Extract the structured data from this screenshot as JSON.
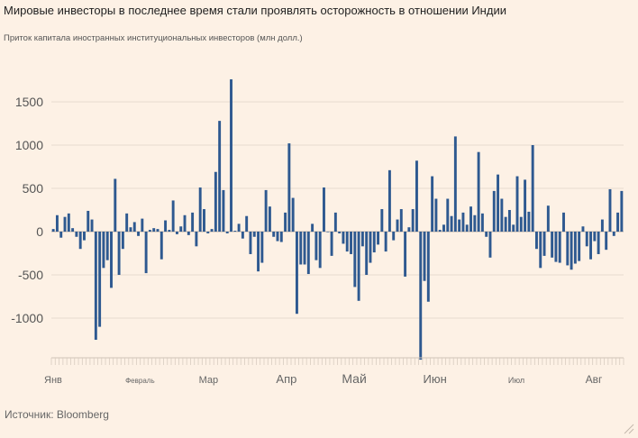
{
  "title": "Мировые инвесторы в последнее время стали проявлять осторожность в отношении Индии",
  "subtitle": "Приток капитала иностранных институциональных инвесторов (млн долл.)",
  "source": "Источник: Bloomberg",
  "colors": {
    "background": "#fdf1e5",
    "bar": "#2e5990",
    "grid": "#e8dccf",
    "zero_line": "#bfb3a7"
  },
  "icons": {
    "resize": "resize-corner-icon"
  },
  "chart_data": {
    "type": "bar",
    "title": "Мировые инвесторы в последнее время стали проявлять осторожность в отношении Индии",
    "ylabel": "Приток капитала иностранных институциональных инвесторов (млн долл.)",
    "xlabel": "",
    "ylim": [
      -1500,
      1800
    ],
    "yticks": [
      {
        "value": 1500,
        "label": "1500"
      },
      {
        "value": 1000,
        "label": "1000"
      },
      {
        "value": 500,
        "label": "500"
      },
      {
        "value": 0,
        "label": "0"
      },
      {
        "value": -500,
        "label": "-500"
      },
      {
        "value": -1000,
        "label": "-1000"
      }
    ],
    "months": [
      {
        "label": "Янв",
        "start_index": 0
      },
      {
        "label": "Февраль",
        "start_index": 21
      },
      {
        "label": "Мар",
        "start_index": 40
      },
      {
        "label": "Апр",
        "start_index": 60
      },
      {
        "label": "Май",
        "start_index": 77
      },
      {
        "label": "Июн",
        "start_index": 98
      },
      {
        "label": "Июл",
        "start_index": 120
      },
      {
        "label": "Авг",
        "start_index": 140
      }
    ],
    "grid": true,
    "series": [
      {
        "name": "Приток капитала",
        "values": [
          30,
          190,
          -70,
          170,
          210,
          40,
          -60,
          -200,
          -100,
          240,
          140,
          -1250,
          -1100,
          -420,
          -330,
          -650,
          610,
          -500,
          -200,
          210,
          50,
          110,
          -50,
          150,
          -480,
          20,
          40,
          30,
          -320,
          130,
          20,
          360,
          -30,
          60,
          190,
          -40,
          220,
          -170,
          510,
          260,
          -20,
          30,
          690,
          1280,
          480,
          -20,
          1760,
          10,
          90,
          -80,
          180,
          -260,
          -60,
          -460,
          -360,
          480,
          290,
          -60,
          -110,
          -120,
          220,
          1020,
          390,
          -950,
          -380,
          -380,
          -490,
          90,
          -330,
          -420,
          510,
          0,
          -280,
          220,
          -20,
          -140,
          -230,
          -260,
          -640,
          -800,
          -170,
          -500,
          -360,
          -240,
          -150,
          260,
          -230,
          710,
          -100,
          140,
          260,
          -520,
          50,
          260,
          820,
          -1480,
          -570,
          -810,
          640,
          380,
          20,
          80,
          380,
          180,
          1100,
          140,
          220,
          80,
          290,
          190,
          920,
          210,
          -60,
          -300,
          470,
          660,
          380,
          170,
          250,
          80,
          640,
          170,
          600,
          230,
          1000,
          -200,
          -420,
          -280,
          300,
          -300,
          -350,
          -360,
          220,
          -390,
          -440,
          -370,
          -340,
          60,
          -170,
          -320,
          -110,
          -260,
          140,
          -210,
          490,
          -50,
          220,
          470
        ]
      }
    ]
  }
}
